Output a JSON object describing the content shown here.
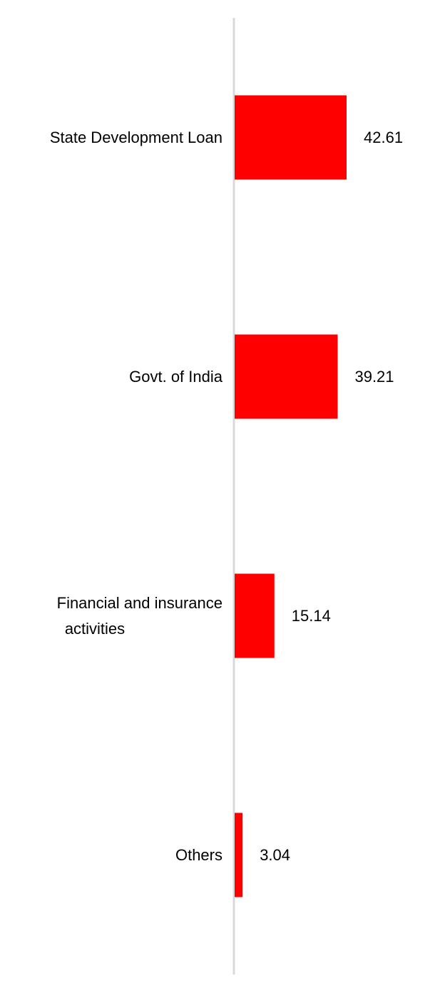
{
  "chart_data": {
    "type": "bar",
    "orientation": "horizontal",
    "categories": [
      "State Development Loan",
      "Govt. of India",
      "Financial and insurance activities",
      "Others"
    ],
    "category_lines": [
      [
        "State Development Loan"
      ],
      [
        "Govt. of India"
      ],
      [
        "Financial and insurance",
        "activities"
      ],
      [
        "Others"
      ]
    ],
    "values": [
      42.61,
      39.21,
      15.14,
      3.04
    ],
    "value_labels": [
      "42.61",
      "39.21",
      "15.14",
      "3.04"
    ],
    "title": "",
    "xlabel": "",
    "ylabel": "",
    "grid": false,
    "legend": "none",
    "bar_color": "#ff0000",
    "axis_color": "#d9d9d9"
  }
}
